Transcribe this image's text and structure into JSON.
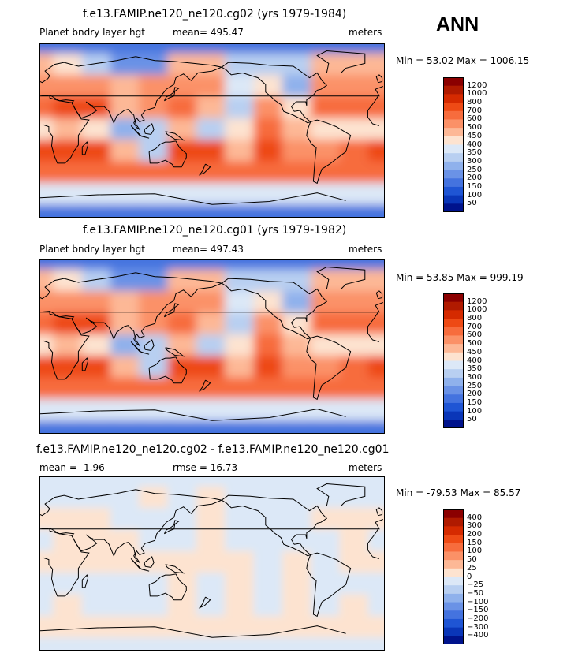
{
  "season": "ANN",
  "panels": [
    {
      "title": "f.e13.FAMIP.ne120_ne120.cg02 (yrs 1979-1984)",
      "left_label": "Planet bndry layer hgt",
      "stat_label": "mean=",
      "stat_value": "495.47",
      "units": "meters",
      "min_text": "Min =   53.02",
      "max_text": "Max = 1006.15"
    },
    {
      "title": "f.e13.FAMIP.ne120_ne120.cg01 (yrs 1979-1982)",
      "left_label": "Planet bndry layer hgt",
      "stat_label": "mean=",
      "stat_value": "497.43",
      "units": "meters",
      "min_text": "Min =   53.85",
      "max_text": "Max = 999.19"
    },
    {
      "title": "f.e13.FAMIP.ne120_ne120.cg02 - f.e13.FAMIP.ne120_ne120.cg01",
      "left_label": "mean =   -1.96",
      "stat_label": "rmse =",
      "stat_value": "16.73",
      "units": "meters",
      "min_text": "Min = -79.53",
      "max_text": "Max =   85.57"
    }
  ],
  "colorbars": {
    "field_levels": [
      "1200",
      "1000",
      "800",
      "700",
      "600",
      "500",
      "450",
      "400",
      "350",
      "300",
      "250",
      "200",
      "150",
      "100",
      "50"
    ],
    "diff_levels": [
      "400",
      "300",
      "200",
      "150",
      "100",
      "50",
      "25",
      "0",
      "−25",
      "−50",
      "−100",
      "−150",
      "−200",
      "−300",
      "−400"
    ],
    "colors": [
      "#8b0000",
      "#b01a00",
      "#d52a00",
      "#ee4a15",
      "#f76c3d",
      "#fb9167",
      "#fdb896",
      "#fde3d0",
      "#dce8f7",
      "#b8cff1",
      "#8fb1ec",
      "#6a92e6",
      "#4473df",
      "#1f55d4",
      "#0a36b8",
      "#00138c"
    ]
  },
  "chart_data": [
    {
      "type": "heatmap",
      "title": "f.e13.FAMIP.ne120_ne120.cg02 (yrs 1979-1984)",
      "variable": "Planet bndry layer hgt",
      "units": "meters",
      "mean": 495.47,
      "min": 53.02,
      "max": 1006.15,
      "x": [
        -180,
        -150,
        -120,
        -90,
        -60,
        -30,
        0,
        30,
        60,
        90,
        120,
        150,
        180
      ],
      "y": [
        80,
        60,
        40,
        20,
        0,
        -20,
        -40,
        -60,
        -80
      ],
      "values": [
        [
          150,
          150,
          150,
          150,
          150,
          150,
          150,
          150,
          150,
          150,
          150,
          150,
          150
        ],
        [
          450,
          400,
          300,
          200,
          200,
          450,
          450,
          300,
          300,
          300,
          450,
          450,
          450
        ],
        [
          550,
          550,
          500,
          450,
          500,
          550,
          500,
          350,
          400,
          250,
          550,
          550,
          550
        ],
        [
          650,
          700,
          700,
          450,
          550,
          650,
          450,
          300,
          500,
          400,
          600,
          650,
          650
        ],
        [
          400,
          450,
          400,
          250,
          300,
          450,
          300,
          400,
          600,
          450,
          400,
          400,
          400
        ],
        [
          700,
          750,
          700,
          450,
          300,
          700,
          700,
          450,
          700,
          500,
          550,
          650,
          700
        ],
        [
          600,
          600,
          650,
          600,
          600,
          600,
          600,
          600,
          600,
          600,
          600,
          600,
          600
        ],
        [
          350,
          350,
          350,
          350,
          350,
          350,
          350,
          350,
          350,
          350,
          350,
          350,
          350
        ],
        [
          150,
          150,
          150,
          150,
          150,
          150,
          150,
          150,
          150,
          150,
          150,
          150,
          150
        ]
      ],
      "levels": [
        50,
        100,
        150,
        200,
        250,
        300,
        350,
        400,
        450,
        500,
        600,
        700,
        800,
        1000,
        1200
      ]
    },
    {
      "type": "heatmap",
      "title": "f.e13.FAMIP.ne120_ne120.cg01 (yrs 1979-1982)",
      "variable": "Planet bndry layer hgt",
      "units": "meters",
      "mean": 497.43,
      "min": 53.85,
      "max": 999.19,
      "x": [
        -180,
        -150,
        -120,
        -90,
        -60,
        -30,
        0,
        30,
        60,
        90,
        120,
        150,
        180
      ],
      "y": [
        80,
        60,
        40,
        20,
        0,
        -20,
        -40,
        -60,
        -80
      ],
      "values": [
        [
          150,
          150,
          150,
          150,
          150,
          150,
          150,
          150,
          150,
          150,
          150,
          150,
          150
        ],
        [
          450,
          400,
          300,
          200,
          200,
          450,
          450,
          300,
          300,
          300,
          450,
          450,
          450
        ],
        [
          550,
          550,
          500,
          450,
          500,
          550,
          500,
          350,
          400,
          250,
          550,
          550,
          550
        ],
        [
          650,
          700,
          700,
          450,
          550,
          650,
          450,
          300,
          500,
          400,
          600,
          650,
          650
        ],
        [
          400,
          450,
          400,
          250,
          300,
          450,
          300,
          400,
          600,
          450,
          400,
          400,
          400
        ],
        [
          700,
          750,
          700,
          450,
          300,
          700,
          700,
          450,
          700,
          500,
          550,
          650,
          700
        ],
        [
          600,
          600,
          650,
          600,
          600,
          600,
          600,
          600,
          600,
          600,
          600,
          600,
          600
        ],
        [
          350,
          350,
          350,
          350,
          350,
          350,
          350,
          350,
          350,
          350,
          350,
          350,
          350
        ],
        [
          150,
          150,
          150,
          150,
          150,
          150,
          150,
          150,
          150,
          150,
          150,
          150,
          150
        ]
      ],
      "levels": [
        50,
        100,
        150,
        200,
        250,
        300,
        350,
        400,
        450,
        500,
        600,
        700,
        800,
        1000,
        1200
      ]
    },
    {
      "type": "heatmap",
      "title": "f.e13.FAMIP.ne120_ne120.cg02 - f.e13.FAMIP.ne120_ne120.cg01",
      "units": "meters",
      "mean": -1.96,
      "rmse": 16.73,
      "min": -79.53,
      "max": 85.57,
      "x": [
        -180,
        -150,
        -120,
        -90,
        -60,
        -30,
        0,
        30,
        60,
        90,
        120,
        150,
        180
      ],
      "y": [
        80,
        60,
        40,
        20,
        0,
        -20,
        -40,
        -60,
        -80
      ],
      "values": [
        [
          -10,
          -10,
          -10,
          -10,
          -10,
          -10,
          -10,
          -10,
          -10,
          -10,
          -10,
          -10,
          -10
        ],
        [
          -10,
          -10,
          -10,
          -10,
          5,
          -10,
          5,
          -10,
          -10,
          -10,
          -10,
          -10,
          -10
        ],
        [
          5,
          10,
          5,
          -10,
          -10,
          -10,
          5,
          -10,
          -10,
          -10,
          5,
          10,
          5
        ],
        [
          -10,
          5,
          10,
          5,
          -10,
          -10,
          10,
          -10,
          -10,
          -10,
          -10,
          5,
          -10
        ],
        [
          10,
          15,
          20,
          15,
          10,
          5,
          10,
          5,
          -10,
          5,
          -10,
          10,
          10
        ],
        [
          -10,
          -20,
          -10,
          -10,
          -10,
          5,
          -10,
          5,
          -10,
          5,
          -10,
          -20,
          -10
        ],
        [
          -10,
          5,
          -10,
          -10,
          -10,
          5,
          -10,
          5,
          -10,
          5,
          -10,
          5,
          -10
        ],
        [
          5,
          10,
          5,
          10,
          5,
          10,
          5,
          10,
          5,
          10,
          5,
          10,
          5
        ],
        [
          -5,
          -5,
          -5,
          -5,
          -5,
          -5,
          -5,
          -5,
          -5,
          -5,
          -5,
          -5,
          -5
        ]
      ],
      "levels": [
        -400,
        -300,
        -200,
        -150,
        -100,
        -50,
        -25,
        0,
        25,
        50,
        100,
        150,
        200,
        300,
        400
      ]
    }
  ]
}
